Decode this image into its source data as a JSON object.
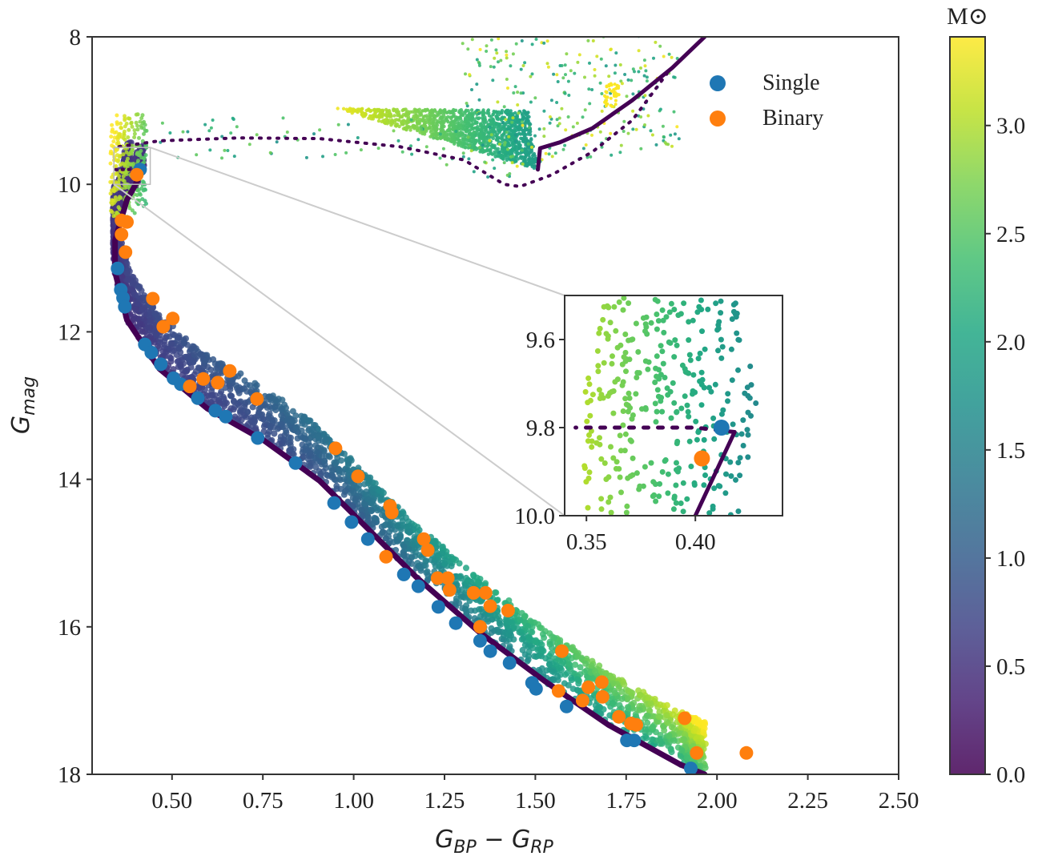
{
  "chart_data": {
    "type": "scatter",
    "xlabel": {
      "base1": "G",
      "sub1": "BP",
      "op": " − ",
      "base2": "G",
      "sub2": "RP"
    },
    "ylabel": {
      "base": "G",
      "sub": "mag"
    },
    "xlim": [
      0.28,
      2.5
    ],
    "ylim": [
      18,
      8
    ],
    "y_inverted": true,
    "xticks": [
      "0.50",
      "0.75",
      "1.00",
      "1.25",
      "1.50",
      "1.75",
      "2.00",
      "2.25",
      "2.50"
    ],
    "yticks": [
      "8",
      "10",
      "12",
      "14",
      "16",
      "18"
    ],
    "grid": false,
    "legend_position": "top-right",
    "series": [
      {
        "name": "Single",
        "color": "#1f77b4",
        "points": [
          [
            0.412,
            9.8
          ],
          [
            0.35,
            11.14
          ],
          [
            0.359,
            11.43
          ],
          [
            0.365,
            11.54
          ],
          [
            0.37,
            11.66
          ],
          [
            0.425,
            12.17
          ],
          [
            0.443,
            12.28
          ],
          [
            0.469,
            12.44
          ],
          [
            0.504,
            12.63
          ],
          [
            0.524,
            12.71
          ],
          [
            0.571,
            12.9
          ],
          [
            0.619,
            13.07
          ],
          [
            0.648,
            13.15
          ],
          [
            0.736,
            13.44
          ],
          [
            0.84,
            13.78
          ],
          [
            0.946,
            14.32
          ],
          [
            0.994,
            14.58
          ],
          [
            1.039,
            14.81
          ],
          [
            1.138,
            15.29
          ],
          [
            1.178,
            15.45
          ],
          [
            1.233,
            15.73
          ],
          [
            1.281,
            15.95
          ],
          [
            1.348,
            16.19
          ],
          [
            1.376,
            16.33
          ],
          [
            1.429,
            16.49
          ],
          [
            1.491,
            16.76
          ],
          [
            1.502,
            16.84
          ],
          [
            1.586,
            17.08
          ],
          [
            1.752,
            17.54
          ],
          [
            1.772,
            17.54
          ],
          [
            1.928,
            17.92
          ]
        ]
      },
      {
        "name": "Binary",
        "color": "#ff7f0e",
        "points": [
          [
            0.403,
            9.87
          ],
          [
            0.361,
            10.49
          ],
          [
            0.376,
            10.51
          ],
          [
            0.361,
            10.68
          ],
          [
            0.372,
            10.92
          ],
          [
            0.447,
            11.55
          ],
          [
            0.502,
            11.82
          ],
          [
            0.476,
            11.93
          ],
          [
            0.659,
            12.53
          ],
          [
            0.586,
            12.64
          ],
          [
            0.626,
            12.69
          ],
          [
            0.549,
            12.74
          ],
          [
            0.734,
            12.91
          ],
          [
            0.95,
            13.58
          ],
          [
            1.012,
            13.96
          ],
          [
            1.1,
            14.36
          ],
          [
            1.105,
            14.45
          ],
          [
            1.193,
            14.81
          ],
          [
            1.204,
            14.96
          ],
          [
            1.089,
            15.05
          ],
          [
            1.231,
            15.34
          ],
          [
            1.259,
            15.34
          ],
          [
            1.264,
            15.5
          ],
          [
            1.33,
            15.54
          ],
          [
            1.363,
            15.54
          ],
          [
            1.376,
            15.72
          ],
          [
            1.425,
            15.78
          ],
          [
            1.348,
            16.0
          ],
          [
            1.573,
            16.33
          ],
          [
            1.564,
            16.87
          ],
          [
            1.646,
            16.82
          ],
          [
            1.683,
            16.75
          ],
          [
            1.685,
            16.95
          ],
          [
            1.63,
            17.0
          ],
          [
            1.73,
            17.22
          ],
          [
            1.763,
            17.31
          ],
          [
            1.778,
            17.33
          ],
          [
            1.911,
            17.24
          ],
          [
            1.944,
            17.71
          ],
          [
            2.081,
            17.71
          ]
        ]
      }
    ],
    "isochrone": {
      "color": "#440154",
      "main_sequence": [
        [
          1.966,
          18.0
        ],
        [
          1.9,
          17.87
        ],
        [
          1.701,
          17.33
        ],
        [
          1.524,
          16.73
        ],
        [
          1.348,
          16.08
        ],
        [
          1.171,
          15.32
        ],
        [
          1.039,
          14.67
        ],
        [
          0.906,
          14.02
        ],
        [
          0.752,
          13.47
        ],
        [
          0.597,
          13.04
        ],
        [
          0.465,
          12.5
        ],
        [
          0.376,
          11.84
        ],
        [
          0.343,
          11.19
        ],
        [
          0.343,
          10.76
        ],
        [
          0.376,
          10.21
        ],
        [
          0.4,
          10.0
        ],
        [
          0.418,
          9.81
        ]
      ],
      "hook": [
        [
          0.418,
          9.81
        ],
        [
          0.4,
          9.8
        ],
        [
          0.38,
          9.8
        ],
        [
          0.345,
          9.8
        ]
      ],
      "subgiant": [
        [
          0.354,
          9.49
        ],
        [
          0.465,
          9.41
        ],
        [
          0.685,
          9.37
        ],
        [
          0.906,
          9.38
        ],
        [
          1.127,
          9.49
        ],
        [
          1.304,
          9.67
        ],
        [
          1.414,
          10.0
        ],
        [
          1.458,
          10.03
        ],
        [
          1.546,
          9.87
        ],
        [
          1.657,
          9.56
        ],
        [
          1.767,
          9.13
        ],
        [
          1.862,
          8.5
        ]
      ],
      "giant_branch": [
        [
          1.507,
          9.8
        ],
        [
          1.513,
          9.51
        ],
        [
          1.568,
          9.43
        ],
        [
          1.657,
          9.24
        ],
        [
          1.767,
          8.86
        ],
        [
          1.877,
          8.42
        ],
        [
          1.966,
          8.0
        ]
      ]
    },
    "colorbar": {
      "label": "M⊙",
      "colormap": "viridis",
      "range": [
        0,
        3.41
      ],
      "ticks": [
        "0.0",
        "0.5",
        "1.0",
        "1.5",
        "2.0",
        "2.5",
        "3.0"
      ]
    },
    "inset": {
      "xlim": [
        0.34,
        0.44
      ],
      "ylim": [
        10.0,
        9.5
      ],
      "xticks": [
        "0.35",
        "0.40"
      ],
      "yticks": [
        "9.6",
        "9.8",
        "10.0"
      ]
    }
  }
}
